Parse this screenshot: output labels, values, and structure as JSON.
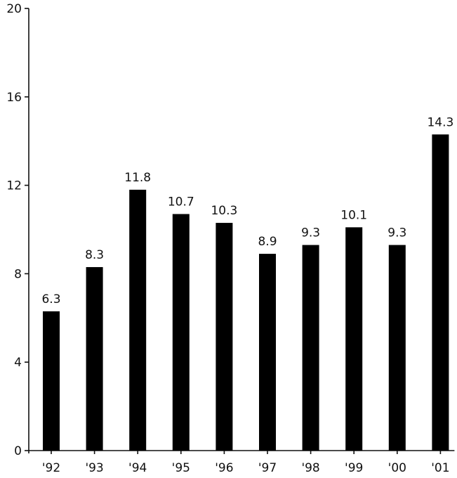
{
  "chart_data": {
    "type": "bar",
    "title": "",
    "xlabel": "",
    "ylabel": "",
    "categories": [
      "'92",
      "'93",
      "'94",
      "'95",
      "'96",
      "'97",
      "'98",
      "'99",
      "'00",
      "'01"
    ],
    "values": [
      6.3,
      8.3,
      11.8,
      10.7,
      10.3,
      8.9,
      9.3,
      10.1,
      9.3,
      14.3
    ],
    "data_labels": [
      "6.3",
      "8.3",
      "11.8",
      "10.7",
      "10.3",
      "8.9",
      "9.3",
      "10.1",
      "9.3",
      "14.3"
    ],
    "ylim": [
      0,
      20
    ],
    "yticks": [
      0,
      4,
      8,
      12,
      16,
      20
    ],
    "ytick_labels": [
      "0",
      "4",
      "8",
      "12",
      "16",
      "20"
    ],
    "grid": false,
    "legend": "none",
    "bar_color": "#000000"
  }
}
